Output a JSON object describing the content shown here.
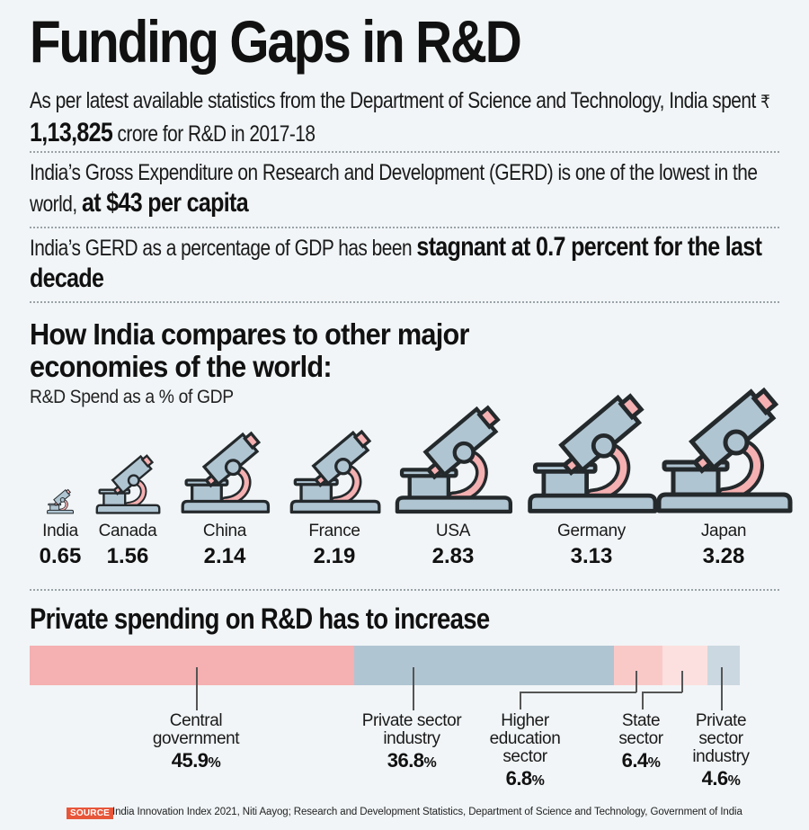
{
  "title": "Funding Gaps in R&D",
  "facts": [
    {
      "text_before": "As per latest available statistics from the Department of Science and Technology, India spent",
      "currency_symbol": "₹",
      "highlight": "1,13,825",
      "text_after": "crore for R&D in 2017-18"
    },
    {
      "text_before": "India’s Gross Expenditure on Research and Development (GERD) is one of the lowest in the world,",
      "highlight": "at $43 per capita",
      "text_after": ""
    },
    {
      "text_before": "India’s GERD as a percentage of GDP has been",
      "highlight": "stagnant at 0.7 percent for the last decade",
      "text_after": ""
    }
  ],
  "comparison": {
    "heading_line1": "How India compares to other major",
    "heading_line2": "economies of the world:",
    "subtitle": "R&D Spend as a % of GDP"
  },
  "private": {
    "heading": "Private spending on R&D has to increase"
  },
  "colors": {
    "pink": "#f5b0b1",
    "blue_grey": "#b0c5d2",
    "light_pink": "#f9c9c8",
    "lighter_pink": "#fce0df",
    "light_blue_grey": "#cbd8e1",
    "outline": "#24292c",
    "source_badge": "#e8563a"
  },
  "chart_data": [
    {
      "type": "bar",
      "title": "R&D Spend as a % of GDP",
      "categories": [
        "India",
        "Canada",
        "China",
        "France",
        "USA",
        "Germany",
        "Japan"
      ],
      "values": [
        0.65,
        1.56,
        2.14,
        2.19,
        2.83,
        3.13,
        3.28
      ],
      "value_labels": [
        "0.65",
        "1.56",
        "2.14",
        "2.19",
        "2.83",
        "3.13",
        "3.28"
      ],
      "mark": "microscope icon scaled by value"
    },
    {
      "type": "bar",
      "subtype": "stacked-100",
      "title": "Private spending on R&D has to increase",
      "categories": [
        "Central government",
        "Private sector industry",
        "Higher education sector",
        "State sector",
        "Private sector industry"
      ],
      "values": [
        45.9,
        36.8,
        6.8,
        6.4,
        4.6
      ],
      "value_labels": [
        "45.9%",
        "36.8%",
        "6.8%",
        "6.4%",
        "4.6%"
      ],
      "label_lines": [
        [
          "Central",
          "government"
        ],
        [
          "Private sector",
          "industry"
        ],
        [
          "Higher",
          "education",
          "sector"
        ],
        [
          "State",
          "sector"
        ],
        [
          "Private",
          "sector",
          "industry"
        ]
      ],
      "colors": [
        "#f5b0b1",
        "#b0c5d2",
        "#f9c9c8",
        "#fce0df",
        "#cbd8e1"
      ]
    }
  ],
  "source": {
    "badge": "SOURCE",
    "text": "India Innovation Index 2021, Niti Aayog; Research and Development Statistics, Department of Science and Technology, Government of India"
  }
}
